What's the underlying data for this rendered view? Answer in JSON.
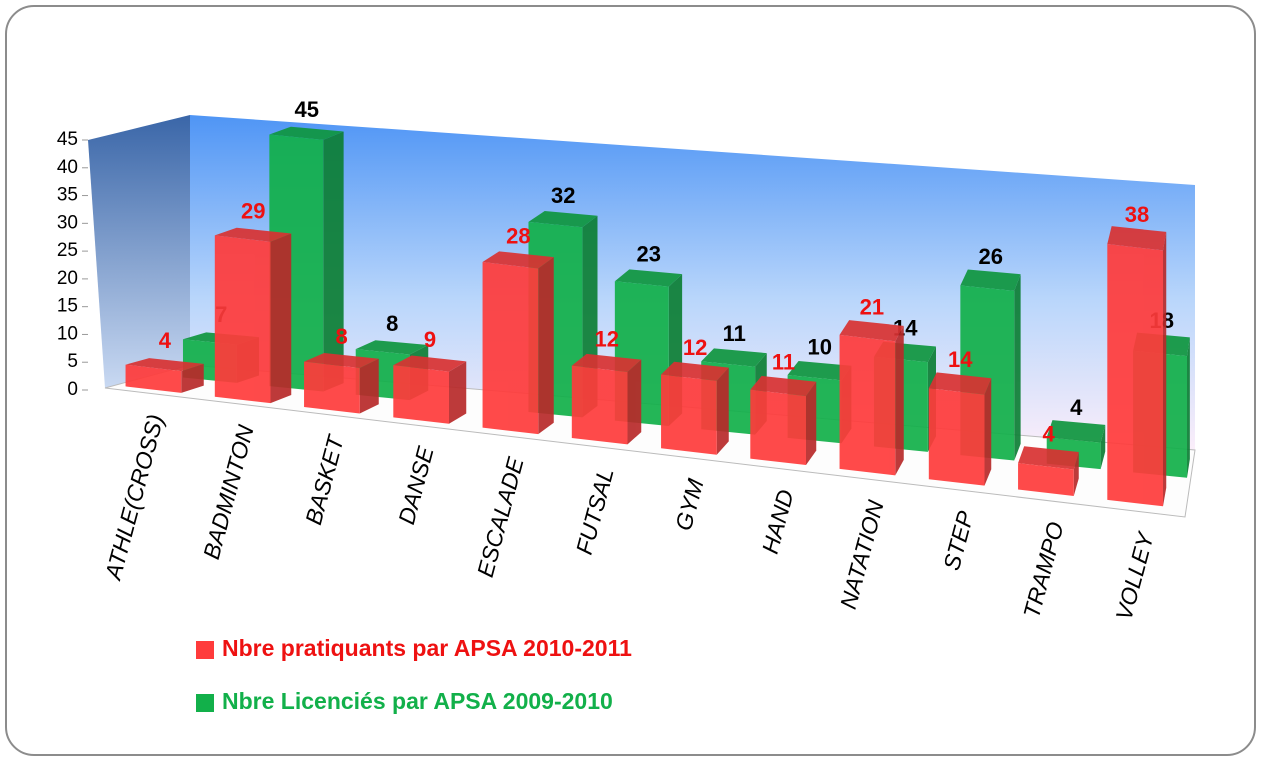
{
  "chart_data": {
    "type": "bar3d",
    "categories": [
      "ATHLE(CROSS)",
      "BADMINTON",
      "BASKET",
      "DANSE",
      "ESCALADE",
      "FUTSAL",
      "GYM",
      "HAND",
      "NATATION",
      "STEP",
      "TRAMPO",
      "VOLLEY"
    ],
    "series": [
      {
        "name": "Nbre pratiquants par APSA 2010-2011",
        "color": "#ff3b3b",
        "label_color": "#ee1111",
        "values": [
          4,
          29,
          8,
          9,
          28,
          12,
          12,
          11,
          21,
          14,
          4,
          38
        ]
      },
      {
        "name": "Nbre Licenciés par APSA 2009-2010",
        "color": "#12b04a",
        "label_color": "#000000",
        "values": [
          7,
          45,
          8,
          null,
          32,
          23,
          11,
          10,
          14,
          26,
          4,
          18
        ]
      }
    ],
    "ylim": [
      0,
      45
    ],
    "yticks": [
      0,
      5,
      10,
      15,
      20,
      25,
      30,
      35,
      40,
      45
    ],
    "legend": "bottom-left"
  }
}
